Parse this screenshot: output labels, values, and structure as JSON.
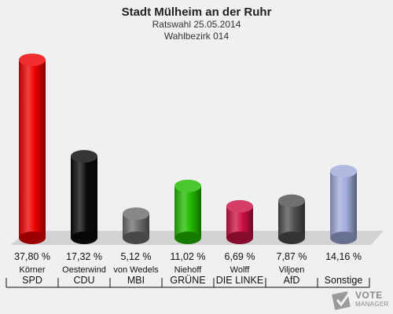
{
  "header": {
    "title": "Stadt Mülheim an der Ruhr",
    "subtitle": "Ratswahl 25.05.2014",
    "district": "Wahlbezirk 014"
  },
  "chart_data": {
    "type": "bar",
    "categories": [
      "SPD",
      "CDU",
      "MBI",
      "GRÜNE",
      "DIE LINKE",
      "AfD",
      "Sonstige"
    ],
    "candidates": [
      "Körner",
      "Oesterwind",
      "von Wedels",
      "Niehoff",
      "Wolff",
      "Viljoen",
      ""
    ],
    "values": [
      37.8,
      17.32,
      5.12,
      11.02,
      6.69,
      7.87,
      14.16
    ],
    "value_labels": [
      "37,80 %",
      "17,32 %",
      "5,12 %",
      "11,02 %",
      "6,69 %",
      "7,87 %",
      "14,16 %"
    ],
    "colors": [
      "#ee0000",
      "#0a0a0a",
      "#6e6e6e",
      "#22bb00",
      "#cc1144",
      "#505050",
      "#a0acdc"
    ],
    "ylim": [
      0,
      40
    ],
    "grid": false,
    "legend": "none"
  },
  "logo": {
    "line1": "VOTE",
    "line2": "MANAGER"
  }
}
